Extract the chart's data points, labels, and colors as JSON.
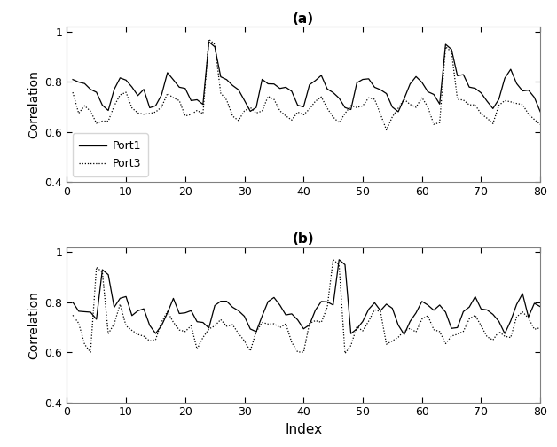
{
  "title_a": "(a)",
  "title_b": "(b)",
  "xlabel": "Index",
  "ylabel": "Correlation",
  "xlim": [
    0,
    80
  ],
  "ylim": [
    0.4,
    1.02
  ],
  "yticks": [
    0.4,
    0.6,
    0.8,
    1.0
  ],
  "ytick_labels": [
    "0.4",
    "0.6",
    "0.8",
    "1"
  ],
  "xticks": [
    0,
    10,
    20,
    30,
    40,
    50,
    60,
    70,
    80
  ],
  "legend_a": [
    "Port1",
    "Port3"
  ],
  "figsize": [
    6.28,
    5.04
  ],
  "dpi": 100
}
